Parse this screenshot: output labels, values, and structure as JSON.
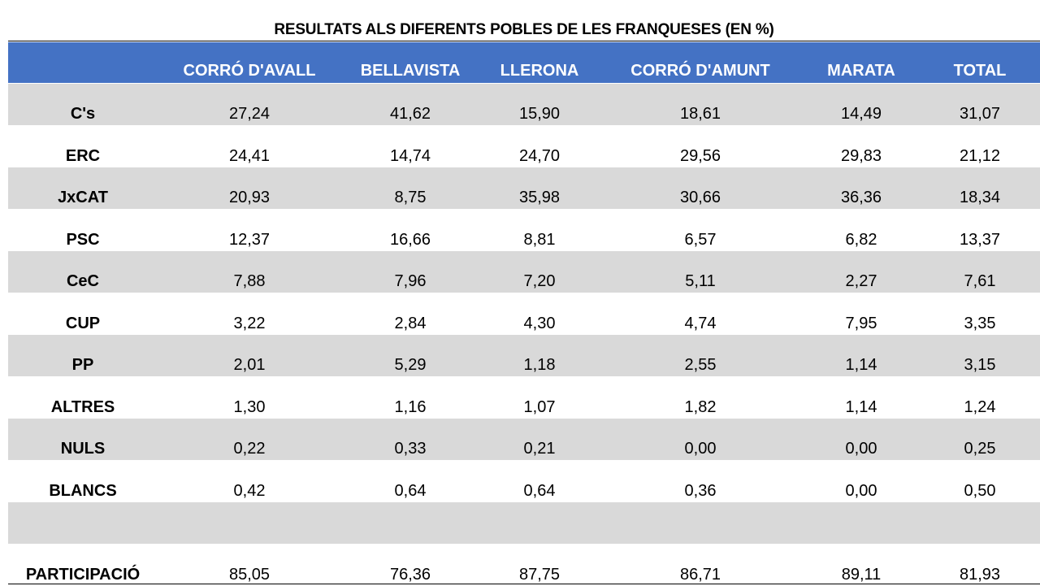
{
  "chart_data": {
    "type": "table",
    "title": "RESULTATS ALS DIFERENTS POBLES DE LES FRANQUESES (EN %)",
    "columns": [
      "CORRÓ D'AVALL",
      "BELLAVISTA",
      "LLERONA",
      "CORRÓ D'AMUNT",
      "MARATA",
      "TOTAL"
    ],
    "rows": [
      {
        "label": "C's",
        "values": [
          "27,24",
          "41,62",
          "15,90",
          "18,61",
          "14,49",
          "31,07"
        ]
      },
      {
        "label": "ERC",
        "values": [
          "24,41",
          "14,74",
          "24,70",
          "29,56",
          "29,83",
          "21,12"
        ]
      },
      {
        "label": "JxCAT",
        "values": [
          "20,93",
          "8,75",
          "35,98",
          "30,66",
          "36,36",
          "18,34"
        ]
      },
      {
        "label": "PSC",
        "values": [
          "12,37",
          "16,66",
          "8,81",
          "6,57",
          "6,82",
          "13,37"
        ]
      },
      {
        "label": "CeC",
        "values": [
          "7,88",
          "7,96",
          "7,20",
          "5,11",
          "2,27",
          "7,61"
        ]
      },
      {
        "label": "CUP",
        "values": [
          "3,22",
          "2,84",
          "4,30",
          "4,74",
          "7,95",
          "3,35"
        ]
      },
      {
        "label": "PP",
        "values": [
          "2,01",
          "5,29",
          "1,18",
          "2,55",
          "1,14",
          "3,15"
        ]
      },
      {
        "label": "ALTRES",
        "values": [
          "1,30",
          "1,16",
          "1,07",
          "1,82",
          "1,14",
          "1,24"
        ]
      },
      {
        "label": "NULS",
        "values": [
          "0,22",
          "0,33",
          "0,21",
          "0,00",
          "0,00",
          "0,25"
        ]
      },
      {
        "label": "BLANCS",
        "values": [
          "0,42",
          "0,64",
          "0,64",
          "0,36",
          "0,00",
          "0,50"
        ]
      },
      {
        "label": "",
        "values": [
          "",
          "",
          "",
          "",
          "",
          ""
        ]
      },
      {
        "label": "PARTICIPACIÓ",
        "values": [
          "85,05",
          "76,36",
          "87,75",
          "86,71",
          "89,11",
          "81,93"
        ]
      }
    ],
    "colors": {
      "header_bg": "#4472c4",
      "header_text": "#ffffff",
      "stripe": "#d9d9d9"
    }
  }
}
